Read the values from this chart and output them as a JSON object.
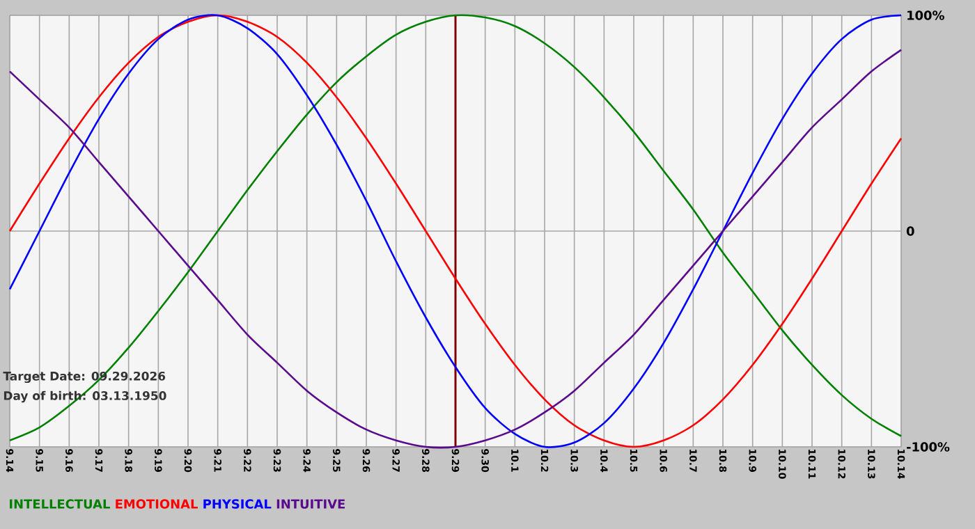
{
  "chart_data": {
    "type": "line",
    "categories": [
      "9.14",
      "9.15",
      "9.16",
      "9.17",
      "9.18",
      "9.19",
      "9.20",
      "9.21",
      "9.22",
      "9.23",
      "9.24",
      "9.25",
      "9.26",
      "9.27",
      "9.28",
      "9.29",
      "9.30",
      "10.1",
      "10.2",
      "10.3",
      "10.4",
      "10.5",
      "10.6",
      "10.7",
      "10.8",
      "10.9",
      "10.10",
      "10.11",
      "10.12",
      "10.13",
      "10.14"
    ],
    "series": [
      {
        "name": "INTELLECTUAL",
        "color": "#008000",
        "values": [
          -97,
          -91,
          -81,
          -69,
          -54,
          -37,
          -19,
          0,
          19,
          37,
          54,
          69,
          81,
          91,
          97,
          100,
          99,
          95,
          87,
          76,
          62,
          46,
          28,
          10,
          -10,
          -28,
          -46,
          -62,
          -76,
          -87,
          -95
        ]
      },
      {
        "name": "EMOTIONAL",
        "color": "#ff0000",
        "values": [
          0,
          22,
          43,
          62,
          78,
          90,
          97,
          100,
          97,
          90,
          78,
          62,
          43,
          22,
          0,
          -22,
          -43,
          -62,
          -78,
          -90,
          -97,
          -100,
          -97,
          -90,
          -78,
          -62,
          -43,
          -22,
          0,
          22,
          43
        ]
      },
      {
        "name": "PHYSICAL",
        "color": "#0000ff",
        "values": [
          -27,
          0,
          27,
          52,
          73,
          89,
          98,
          100,
          94,
          82,
          63,
          40,
          14,
          -14,
          -40,
          -63,
          -82,
          -94,
          -100,
          -98,
          -89,
          -73,
          -52,
          -27,
          0,
          27,
          52,
          73,
          89,
          98,
          100
        ]
      },
      {
        "name": "INTUITIVE",
        "color": "#5a0a8c",
        "values": [
          74,
          61,
          48,
          32,
          16,
          0,
          -16,
          -32,
          -48,
          -61,
          -74,
          -84,
          -92,
          -97,
          -100,
          -100,
          -97,
          -92,
          -84,
          -74,
          -61,
          -48,
          -32,
          -16,
          0,
          16,
          32,
          48,
          61,
          74,
          84
        ]
      }
    ],
    "ylim": [
      -100,
      100
    ],
    "yticks": [
      {
        "value": -100,
        "label": "-100%"
      },
      0,
      {
        "value": 100,
        "label": "100%"
      }
    ],
    "grid": true,
    "legend": "bottom",
    "ref_lines": [
      {
        "axis": "x",
        "value": "9.29",
        "color": "#800000"
      }
    ],
    "annotations": [
      "Target Date: 09.29.2026",
      "Day of birth: 03.13.1950"
    ]
  }
}
